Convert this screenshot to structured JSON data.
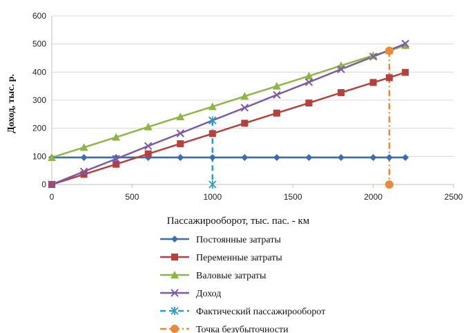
{
  "chart_data": {
    "type": "line",
    "xlabel": "Пассажирооборот, тыс. пас. - км",
    "ylabel": "Доход, тыс. р.",
    "xlim": [
      0,
      2500
    ],
    "ylim": [
      0,
      600
    ],
    "x_ticks": [
      "0",
      "500",
      "1000",
      "1500",
      "2000",
      "2500"
    ],
    "y_ticks": [
      "0",
      "100",
      "200",
      "300",
      "400",
      "500",
      "600"
    ],
    "grid": "horizontal",
    "legend_position": "bottom",
    "series": [
      {
        "name": "Постоянные затраты",
        "color": "#3c6db1",
        "marker": "diamond",
        "x": [
          0,
          200,
          400,
          600,
          800,
          1000,
          1200,
          1400,
          1600,
          1800,
          2000,
          2100,
          2200
        ],
        "y": [
          96,
          96,
          96,
          96,
          96,
          96,
          96,
          96,
          96,
          96,
          96,
          96,
          96
        ]
      },
      {
        "name": "Переменные затраты",
        "color": "#b5413d",
        "marker": "square",
        "x": [
          0,
          200,
          400,
          600,
          800,
          1000,
          1200,
          1400,
          1600,
          1800,
          2000,
          2100,
          2200
        ],
        "y": [
          0,
          36,
          72,
          109,
          145,
          181,
          218,
          254,
          290,
          327,
          363,
          380,
          399
        ]
      },
      {
        "name": "Валовые затраты",
        "color": "#8db646",
        "marker": "triangle",
        "x": [
          0,
          200,
          400,
          600,
          800,
          1000,
          1200,
          1400,
          1600,
          1800,
          2000,
          2100,
          2200
        ],
        "y": [
          96,
          132,
          168,
          205,
          241,
          277,
          314,
          350,
          386,
          423,
          459,
          476,
          495
        ]
      },
      {
        "name": "Доход",
        "color": "#7d5aa6",
        "marker": "x",
        "x": [
          0,
          200,
          400,
          600,
          800,
          1000,
          1200,
          1400,
          1600,
          1800,
          2000,
          2200
        ],
        "y": [
          0,
          46,
          91,
          137,
          182,
          228,
          273,
          319,
          364,
          410,
          455,
          501
        ]
      },
      {
        "name": "Фактический пассажирооборот",
        "color": "#2c9dbf",
        "marker": "asterisk",
        "line": "dash",
        "x": [
          1000,
          1000
        ],
        "y": [
          228,
          0
        ]
      },
      {
        "name": "Точка безубыточности",
        "color": "#e88a3a",
        "marker": "circle",
        "line": "dashdot",
        "x": [
          2100,
          2100
        ],
        "y": [
          476,
          0
        ]
      }
    ]
  }
}
